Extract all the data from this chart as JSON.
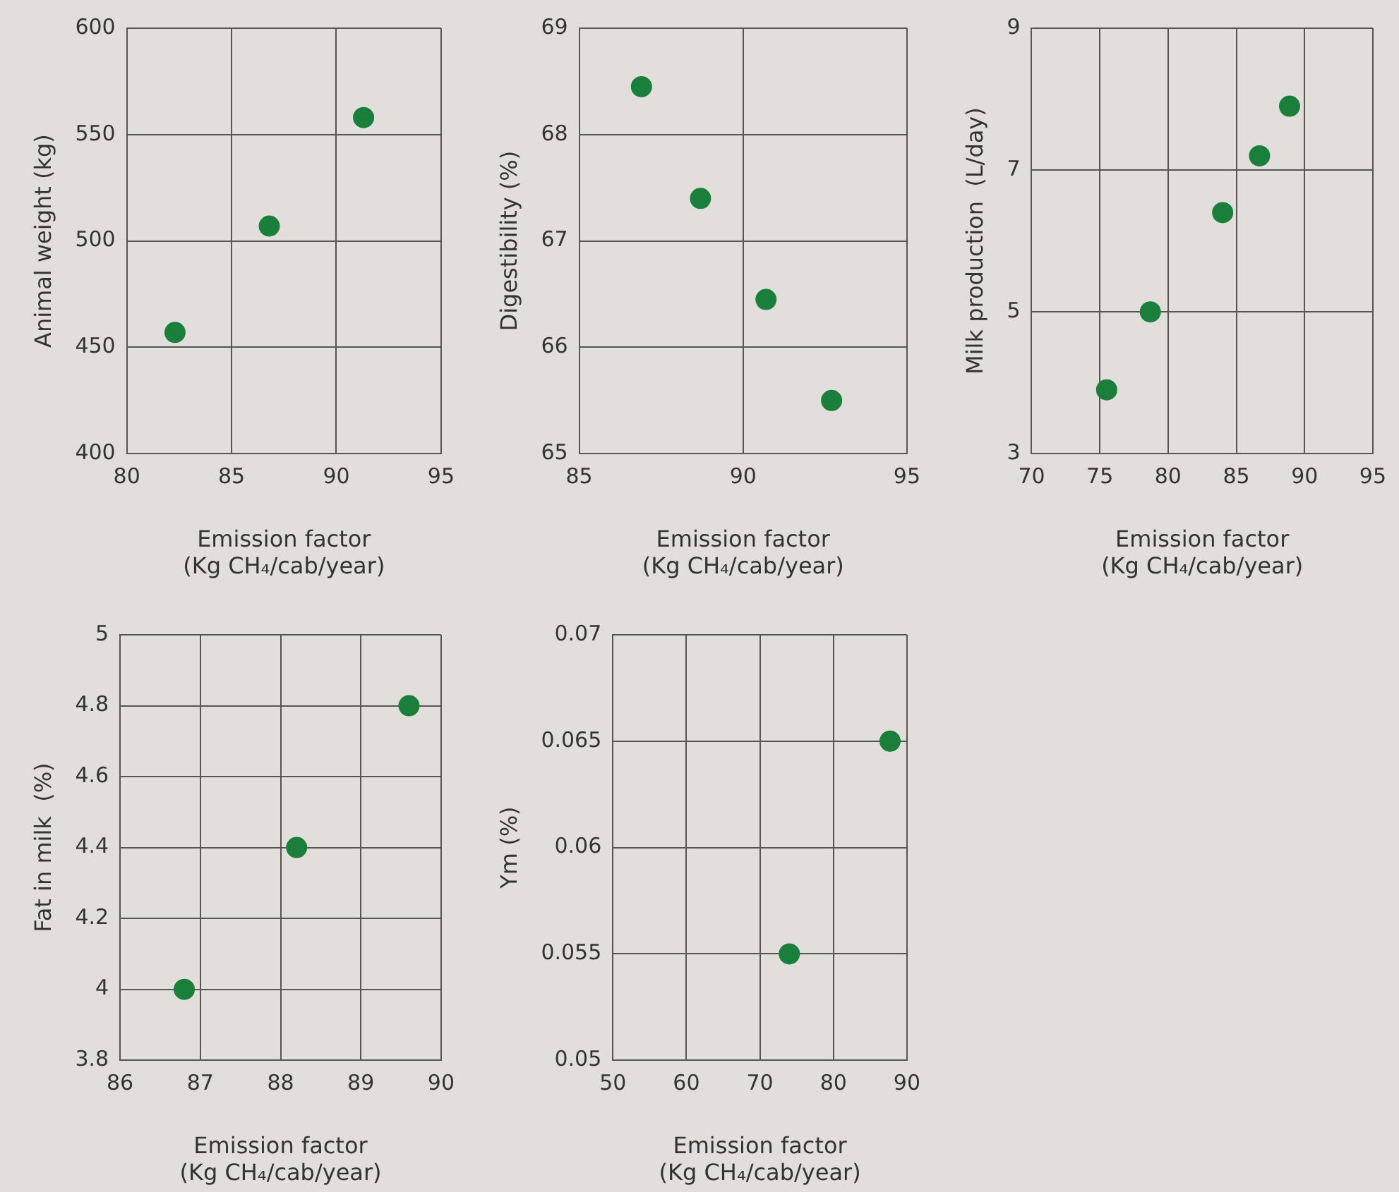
{
  "chart_data": [
    {
      "type": "scatter",
      "xlabel": "Emission factor\n(Kg CH₄/cab/year)",
      "ylabel": "Animal weight (kg)",
      "xlim": [
        80,
        95
      ],
      "xticks": [
        80,
        85,
        90,
        95
      ],
      "ylim": [
        400,
        600
      ],
      "yticks": [
        400,
        450,
        500,
        550,
        600
      ],
      "grid": true,
      "marker": "circle",
      "series": [
        {
          "color": "#1a7f3a",
          "x": [
            82.3,
            86.8,
            91.3
          ],
          "values": [
            457,
            507,
            558
          ]
        }
      ]
    },
    {
      "type": "scatter",
      "xlabel": "Emission factor\n(Kg CH₄/cab/year)",
      "ylabel": "Digestibility (%)",
      "xlim": [
        85,
        95
      ],
      "xticks": [
        85,
        90,
        95
      ],
      "ylim": [
        65,
        69
      ],
      "yticks": [
        65,
        66,
        67,
        68,
        69
      ],
      "grid": true,
      "marker": "circle",
      "series": [
        {
          "color": "#1a7f3a",
          "x": [
            86.9,
            88.7,
            90.7,
            92.7
          ],
          "values": [
            68.45,
            67.4,
            66.45,
            65.5
          ]
        }
      ]
    },
    {
      "type": "scatter",
      "xlabel": "Emission factor\n(Kg CH₄/cab/year)",
      "ylabel": "Milk production  (L/day)",
      "xlim": [
        70,
        95
      ],
      "xticks": [
        70,
        75,
        80,
        85,
        90,
        95
      ],
      "ylim": [
        3,
        9
      ],
      "yticks": [
        3,
        5,
        7,
        9
      ],
      "grid": true,
      "marker": "circle",
      "series": [
        {
          "color": "#1a7f3a",
          "x": [
            75.5,
            78.7,
            84.0,
            86.7,
            88.9
          ],
          "values": [
            3.9,
            5.0,
            6.4,
            7.2,
            7.9
          ]
        }
      ]
    },
    {
      "type": "scatter",
      "xlabel": "Emission factor\n(Kg CH₄/cab/year)",
      "ylabel": "Fat in milk  (%)",
      "xlim": [
        86,
        90
      ],
      "xticks": [
        86,
        87,
        88,
        89,
        90
      ],
      "ylim": [
        3.8,
        5
      ],
      "yticks": [
        3.8,
        4,
        4.2,
        4.4,
        4.6,
        4.8,
        5
      ],
      "grid": true,
      "marker": "circle",
      "series": [
        {
          "color": "#1a7f3a",
          "x": [
            86.8,
            88.2,
            89.6
          ],
          "values": [
            4.0,
            4.4,
            4.8
          ]
        }
      ]
    },
    {
      "type": "scatter",
      "xlabel": "Emission factor\n(Kg CH₄/cab/year)",
      "ylabel": "Ym (%)",
      "xlim": [
        50,
        90
      ],
      "xticks": [
        50,
        60,
        70,
        80,
        90
      ],
      "ylim": [
        0.05,
        0.07
      ],
      "yticks": [
        0.05,
        0.055,
        0.06,
        0.065,
        0.07
      ],
      "grid": true,
      "marker": "circle",
      "series": [
        {
          "color": "#1a7f3a",
          "x": [
            74,
            87.7
          ],
          "values": [
            0.055,
            0.065
          ]
        }
      ]
    }
  ]
}
